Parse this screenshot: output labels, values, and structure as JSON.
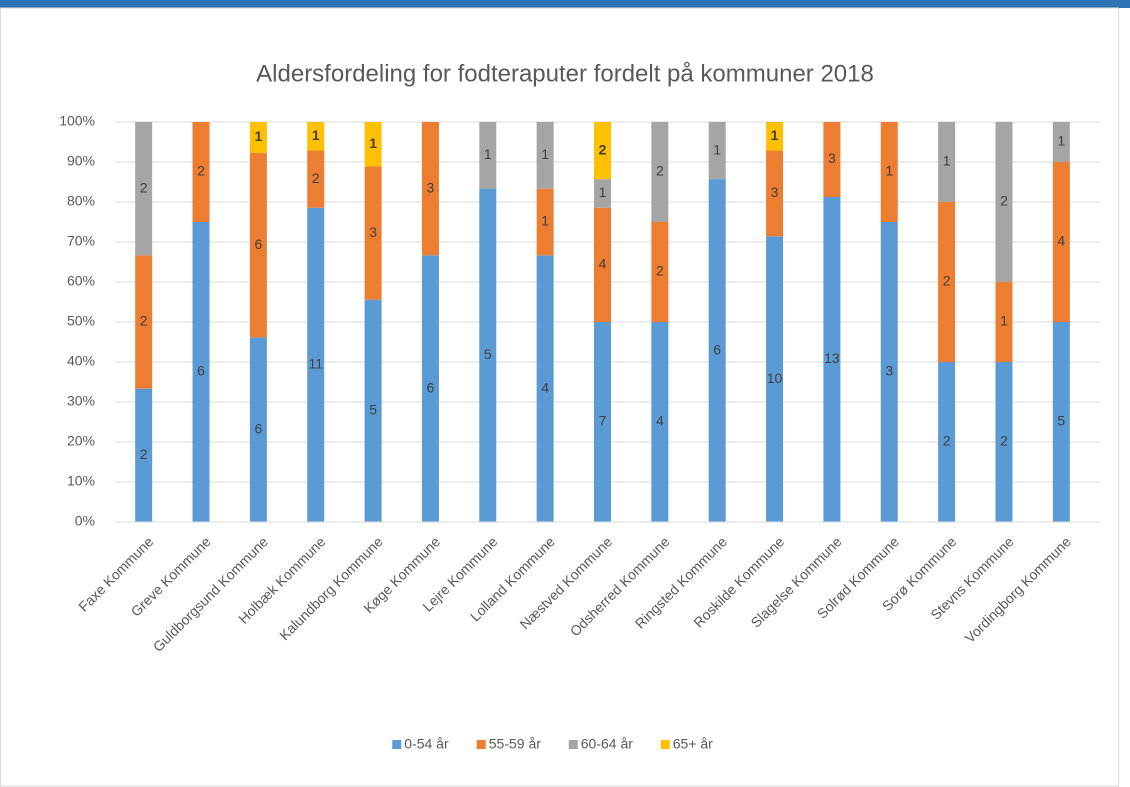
{
  "chart_data": {
    "type": "bar",
    "stack": "percent",
    "title": "Aldersfordeling for fodteraputer fordelt på kommuner 2018",
    "categories": [
      "Faxe Kommune",
      "Greve Kommune",
      "Guldborgsund Kommune",
      "Holbæk Kommune",
      "Kalundborg Kommune",
      "Køge Kommune",
      "Lejre Kommune",
      "Lolland Kommune",
      "Næstved Kommune",
      "Odsherred Kommune",
      "Ringsted Kommune",
      "Roskilde Kommune",
      "Slagelse Kommune",
      "Solrød Kommune",
      "Sorø Kommune",
      "Stevns Kommune",
      "Vordingborg Kommune"
    ],
    "series": [
      {
        "name": "0-54 år",
        "color": "#5b9bd5",
        "values": [
          2,
          6,
          6,
          11,
          5,
          6,
          5,
          4,
          7,
          4,
          6,
          10,
          13,
          3,
          2,
          2,
          5
        ]
      },
      {
        "name": "55-59 år",
        "color": "#ed7d31",
        "values": [
          2,
          2,
          6,
          2,
          3,
          3,
          null,
          1,
          4,
          2,
          null,
          3,
          3,
          1,
          2,
          1,
          4
        ]
      },
      {
        "name": "60-64 år",
        "color": "#a5a5a5",
        "values": [
          2,
          null,
          null,
          null,
          null,
          null,
          1,
          1,
          1,
          2,
          1,
          null,
          null,
          null,
          1,
          2,
          1
        ]
      },
      {
        "name": "65+ år",
        "color": "#ffc000",
        "values": [
          null,
          null,
          1,
          1,
          1,
          null,
          null,
          null,
          2,
          null,
          null,
          1,
          null,
          null,
          null,
          null,
          null
        ]
      }
    ],
    "ylim": [
      0,
      100
    ],
    "yticks": [
      {
        "value": 0,
        "label": "0%"
      },
      {
        "value": 10,
        "label": "10%"
      },
      {
        "value": 20,
        "label": "20%"
      },
      {
        "value": 30,
        "label": "30%"
      },
      {
        "value": 40,
        "label": "40%"
      },
      {
        "value": 50,
        "label": "50%"
      },
      {
        "value": 60,
        "label": "60%"
      },
      {
        "value": 70,
        "label": "70%"
      },
      {
        "value": 80,
        "label": "80%"
      },
      {
        "value": 90,
        "label": "90%"
      },
      {
        "value": 100,
        "label": "100%"
      }
    ],
    "grid": true,
    "legend": "bottom"
  }
}
